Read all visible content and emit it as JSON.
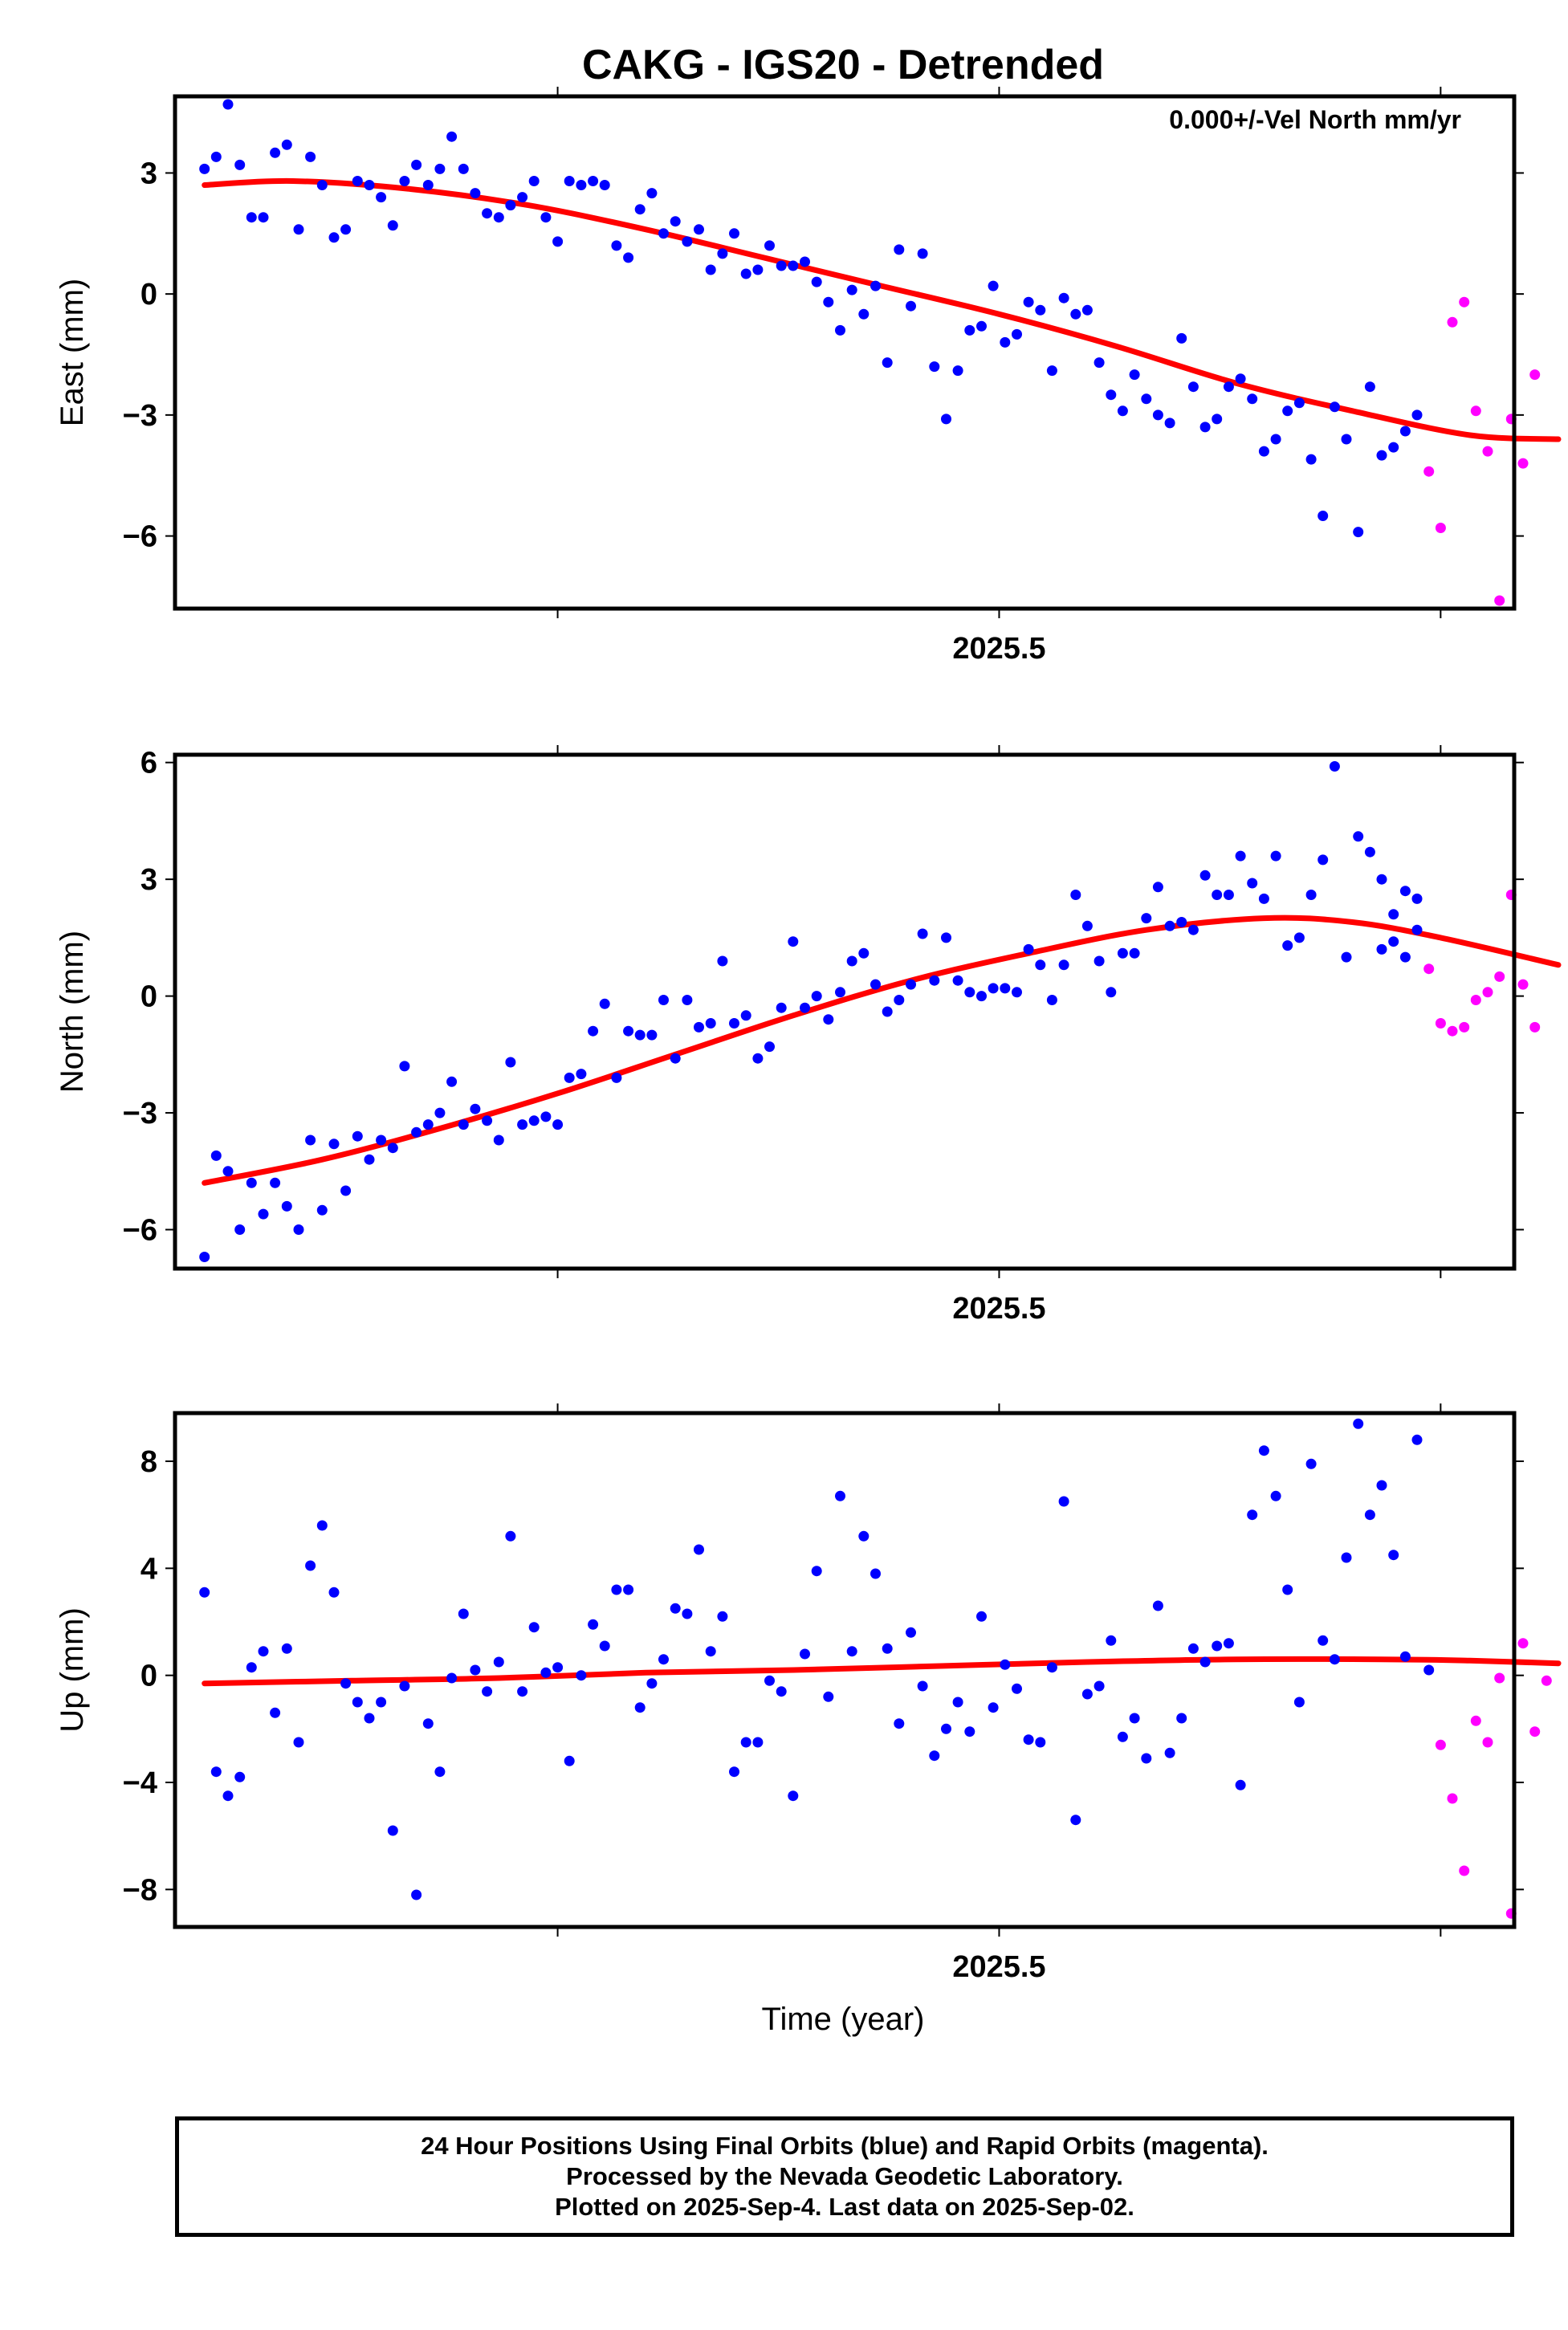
{
  "title": "CAKG - IGS20 - Detrended",
  "annotation": "0.000+/-Vel North mm/yr",
  "footer": {
    "line1": "24 Hour Positions Using Final Orbits (blue) and Rapid Orbits (magenta).",
    "line2": "Processed by the Nevada Geodetic Laboratory.",
    "line3": "Plotted on 2025-Sep-4. Last data on 2025-Sep-02."
  },
  "colors": {
    "final": "#0000ff",
    "rapid": "#ff00ff",
    "fit": "#ff0000",
    "frame": "#000000"
  },
  "chart_data": [
    {
      "type": "scatter",
      "ylabel": "East (mm)",
      "xlabel": "",
      "xlim": [
        2025.22,
        2025.675
      ],
      "ylim": [
        -7.8,
        4.9
      ],
      "x_ticks": [
        2025.35,
        2025.5,
        2025.65
      ],
      "x_tick_labels": [
        "",
        "2025.5",
        ""
      ],
      "y_ticks": [
        3,
        0,
        -3,
        -6
      ],
      "y_tick_labels": [
        "3",
        "0",
        "−3",
        "−6"
      ],
      "series": [
        {
          "role": "final",
          "x": [
            2025.23,
            2025.234,
            2025.238,
            2025.242,
            2025.246,
            2025.25,
            2025.254,
            2025.258,
            2025.262,
            2025.266,
            2025.27,
            2025.274,
            2025.278,
            2025.282,
            2025.286,
            2025.29,
            2025.294,
            2025.298,
            2025.302,
            2025.306,
            2025.31,
            2025.314,
            2025.318,
            2025.322,
            2025.326,
            2025.33,
            2025.334,
            2025.338,
            2025.342,
            2025.346,
            2025.35,
            2025.354,
            2025.358,
            2025.362,
            2025.366,
            2025.37,
            2025.374,
            2025.378,
            2025.382,
            2025.386,
            2025.39,
            2025.394,
            2025.398,
            2025.402,
            2025.406,
            2025.41,
            2025.414,
            2025.418,
            2025.422,
            2025.426,
            2025.43,
            2025.434,
            2025.438,
            2025.442,
            2025.446,
            2025.45,
            2025.454,
            2025.458,
            2025.462,
            2025.466,
            2025.47,
            2025.474,
            2025.478,
            2025.482,
            2025.486,
            2025.49,
            2025.494,
            2025.498,
            2025.502,
            2025.506,
            2025.51,
            2025.514,
            2025.518,
            2025.522,
            2025.526,
            2025.53,
            2025.534,
            2025.538,
            2025.542,
            2025.546,
            2025.55,
            2025.554,
            2025.558,
            2025.562,
            2025.566,
            2025.57,
            2025.574,
            2025.578,
            2025.582,
            2025.586,
            2025.59,
            2025.594,
            2025.598,
            2025.602,
            2025.606,
            2025.61,
            2025.614,
            2025.618,
            2025.622
          ],
          "y": [
            3.1,
            3.4,
            4.7,
            3.2,
            1.9,
            1.9,
            3.5,
            3.7,
            1.6,
            3.4,
            2.7,
            1.4,
            1.6,
            2.8,
            2.7,
            2.4,
            1.7,
            2.8,
            3.2,
            2.7,
            3.1,
            3.9,
            3.1,
            2.5,
            2.0,
            1.9,
            2.2,
            2.4,
            2.8,
            1.9,
            1.3,
            2.8,
            2.7,
            2.8,
            2.7,
            1.2,
            0.9,
            2.1,
            2.5,
            1.5,
            1.8,
            1.3,
            1.6,
            0.6,
            1.0,
            1.5,
            0.5,
            0.6,
            1.2,
            0.7,
            0.7,
            0.8,
            0.3,
            -0.2,
            -0.9,
            0.1,
            -0.5,
            0.2,
            -1.7,
            1.1,
            -0.3,
            1.0,
            -1.8,
            -3.1,
            -1.9,
            -0.9,
            -0.8,
            0.2,
            -1.2,
            -1.0,
            -0.2,
            -0.4,
            -1.9,
            -0.1,
            -0.5,
            -0.4,
            -1.7,
            -2.5,
            -2.9,
            -2.0,
            -2.6,
            -3.0,
            -3.2,
            -1.1,
            -2.3,
            -3.3,
            -3.1,
            -2.3,
            -2.1,
            -2.6,
            -3.9,
            -3.6,
            -2.9,
            -2.7,
            -4.1,
            -5.5,
            -2.8,
            -3.6,
            -5.9
          ]
        },
        {
          "role": "final",
          "x": [
            2025.626,
            2025.63,
            2025.634,
            2025.638,
            2025.642
          ],
          "y": [
            -2.3,
            -4.0,
            -3.8,
            -3.4,
            -3.0
          ]
        },
        {
          "role": "rapid",
          "x": [
            2025.646,
            2025.65,
            2025.654,
            2025.658,
            2025.662,
            2025.666,
            2025.67,
            2025.674,
            2025.678,
            2025.682
          ],
          "y": [
            -4.4,
            -5.8,
            -0.7,
            -0.2,
            -2.9,
            -3.9,
            -7.6,
            -3.1,
            -4.2,
            -2.0
          ]
        }
      ],
      "fit": {
        "x": [
          2025.23,
          2025.26,
          2025.3,
          2025.34,
          2025.38,
          2025.42,
          2025.46,
          2025.5,
          2025.54,
          2025.58,
          2025.62,
          2025.66,
          2025.69
        ],
        "y": [
          2.7,
          2.8,
          2.6,
          2.2,
          1.6,
          0.9,
          0.2,
          -0.5,
          -1.3,
          -2.2,
          -2.9,
          -3.5,
          -3.6
        ]
      }
    },
    {
      "type": "scatter",
      "ylabel": "North (mm)",
      "xlabel": "",
      "xlim": [
        2025.22,
        2025.675
      ],
      "ylim": [
        -7.0,
        6.2
      ],
      "x_ticks": [
        2025.35,
        2025.5,
        2025.65
      ],
      "x_tick_labels": [
        "",
        "2025.5",
        ""
      ],
      "y_ticks": [
        6,
        3,
        0,
        -3,
        -6
      ],
      "y_tick_labels": [
        "6",
        "3",
        "0",
        "−3",
        "−6"
      ],
      "series": [
        {
          "role": "final",
          "x": [
            2025.23,
            2025.234,
            2025.238,
            2025.242,
            2025.246,
            2025.25,
            2025.254,
            2025.258,
            2025.262,
            2025.266,
            2025.27,
            2025.274,
            2025.278,
            2025.282,
            2025.286,
            2025.29,
            2025.294,
            2025.298,
            2025.302,
            2025.306,
            2025.31,
            2025.314,
            2025.318,
            2025.322,
            2025.326,
            2025.33,
            2025.334,
            2025.338,
            2025.342,
            2025.346,
            2025.35,
            2025.354,
            2025.358,
            2025.362,
            2025.366,
            2025.37,
            2025.374,
            2025.378,
            2025.382,
            2025.386,
            2025.39,
            2025.394,
            2025.398,
            2025.402,
            2025.406,
            2025.41,
            2025.414,
            2025.418,
            2025.422,
            2025.426,
            2025.43,
            2025.434,
            2025.438,
            2025.442,
            2025.446,
            2025.45,
            2025.454,
            2025.458,
            2025.462,
            2025.466,
            2025.47,
            2025.474,
            2025.478,
            2025.482,
            2025.486,
            2025.49,
            2025.494,
            2025.498,
            2025.502,
            2025.506,
            2025.51,
            2025.514,
            2025.518,
            2025.522,
            2025.526,
            2025.53,
            2025.534,
            2025.538,
            2025.542,
            2025.546,
            2025.55,
            2025.554,
            2025.558,
            2025.562,
            2025.566,
            2025.57,
            2025.574,
            2025.578,
            2025.582,
            2025.586,
            2025.59,
            2025.594,
            2025.598,
            2025.602,
            2025.606,
            2025.61,
            2025.614,
            2025.618,
            2025.622,
            2025.626,
            2025.63,
            2025.634,
            2025.638,
            2025.642
          ],
          "y": [
            -6.7,
            -4.1,
            -4.5,
            -6.0,
            -4.8,
            -5.6,
            -4.8,
            -5.4,
            -6.0,
            -3.7,
            -5.5,
            -3.8,
            -5.0,
            -3.6,
            -4.2,
            -3.7,
            -3.9,
            -1.8,
            -3.5,
            -3.3,
            -3.0,
            -2.2,
            -3.3,
            -2.9,
            -3.2,
            -3.7,
            -1.7,
            -3.3,
            -3.2,
            -3.1,
            -3.3,
            -2.1,
            -2.0,
            -0.9,
            -0.2,
            -2.1,
            -0.9,
            -1.0,
            -1.0,
            -0.1,
            -1.6,
            -0.1,
            -0.8,
            -0.7,
            0.9,
            -0.7,
            -0.5,
            -1.6,
            -1.3,
            -0.3,
            1.4,
            -0.3,
            0.0,
            -0.6,
            0.1,
            0.9,
            1.1,
            0.3,
            -0.4,
            -0.1,
            0.3,
            1.6,
            0.4,
            1.5,
            0.4,
            0.1,
            0.0,
            0.2,
            0.2,
            0.1,
            1.2,
            0.8,
            -0.1,
            0.8,
            2.6,
            1.8,
            0.9,
            0.1,
            1.1,
            1.1,
            2.0,
            2.8,
            1.8,
            1.9,
            1.7,
            3.1,
            2.6,
            2.6,
            3.6,
            2.9,
            2.5,
            3.6,
            1.3,
            1.5,
            2.6,
            3.5,
            5.9,
            1.0,
            4.1,
            3.7,
            1.2,
            2.1,
            2.7,
            2.5
          ]
        },
        {
          "role": "final",
          "x": [
            2025.63,
            2025.634,
            2025.638,
            2025.642
          ],
          "y": [
            3.0,
            1.4,
            1.0,
            1.7
          ]
        },
        {
          "role": "rapid",
          "x": [
            2025.646,
            2025.65,
            2025.654,
            2025.658,
            2025.662,
            2025.666,
            2025.67,
            2025.674,
            2025.678,
            2025.682
          ],
          "y": [
            0.7,
            -0.7,
            -0.9,
            -0.8,
            -0.1,
            0.1,
            0.5,
            2.6,
            0.3,
            -0.8
          ]
        }
      ],
      "fit": {
        "x": [
          2025.23,
          2025.27,
          2025.31,
          2025.35,
          2025.39,
          2025.43,
          2025.47,
          2025.51,
          2025.55,
          2025.59,
          2025.62,
          2025.65,
          2025.69
        ],
        "y": [
          -4.8,
          -4.2,
          -3.4,
          -2.5,
          -1.5,
          -0.5,
          0.4,
          1.1,
          1.7,
          2.0,
          1.9,
          1.5,
          0.8
        ]
      }
    },
    {
      "type": "scatter",
      "ylabel": "Up (mm)",
      "xlabel": "Time (year)",
      "xlim": [
        2025.22,
        2025.675
      ],
      "ylim": [
        -9.4,
        9.8
      ],
      "x_ticks": [
        2025.35,
        2025.5,
        2025.65
      ],
      "x_tick_labels": [
        "",
        "2025.5",
        ""
      ],
      "y_ticks": [
        8,
        4,
        0,
        -4,
        -8
      ],
      "y_tick_labels": [
        "8",
        "4",
        "0",
        "−4",
        "−8"
      ],
      "series": [
        {
          "role": "final",
          "x": [
            2025.23,
            2025.234,
            2025.238,
            2025.242,
            2025.246,
            2025.25,
            2025.254,
            2025.258,
            2025.262,
            2025.266,
            2025.27,
            2025.274,
            2025.278,
            2025.282,
            2025.286,
            2025.29,
            2025.294,
            2025.298,
            2025.302,
            2025.306,
            2025.31,
            2025.314,
            2025.318,
            2025.322,
            2025.326,
            2025.33,
            2025.334,
            2025.338,
            2025.342,
            2025.346,
            2025.35,
            2025.354,
            2025.358,
            2025.362,
            2025.366,
            2025.37,
            2025.374,
            2025.378,
            2025.382,
            2025.386,
            2025.39,
            2025.394,
            2025.398,
            2025.402,
            2025.406,
            2025.41,
            2025.414,
            2025.418,
            2025.422,
            2025.426,
            2025.43,
            2025.434,
            2025.438,
            2025.442,
            2025.446,
            2025.45,
            2025.454,
            2025.458,
            2025.462,
            2025.466,
            2025.47,
            2025.474,
            2025.478,
            2025.482,
            2025.486,
            2025.49,
            2025.494,
            2025.498,
            2025.502,
            2025.506,
            2025.51,
            2025.514,
            2025.518,
            2025.522,
            2025.526,
            2025.53,
            2025.534,
            2025.538,
            2025.542,
            2025.546,
            2025.55,
            2025.554,
            2025.558,
            2025.562,
            2025.566,
            2025.57,
            2025.574,
            2025.578,
            2025.582,
            2025.586,
            2025.59,
            2025.594,
            2025.598,
            2025.602,
            2025.606,
            2025.61,
            2025.614,
            2025.618,
            2025.622,
            2025.626,
            2025.63,
            2025.634,
            2025.638,
            2025.642
          ],
          "y": [
            3.1,
            -3.6,
            -4.5,
            -3.8,
            0.3,
            0.9,
            -1.4,
            1.0,
            -2.5,
            4.1,
            5.6,
            3.1,
            -0.3,
            -1.0,
            -1.6,
            -1.0,
            -5.8,
            -0.4,
            -8.2,
            -1.8,
            -3.6,
            -0.1,
            2.3,
            0.2,
            -0.6,
            0.5,
            5.2,
            -0.6,
            1.8,
            0.1,
            0.3,
            -3.2,
            0.0,
            1.9,
            1.1,
            3.2,
            3.2,
            -1.2,
            -0.3,
            0.6,
            2.5,
            2.3,
            4.7,
            0.9,
            2.2,
            -3.6,
            -2.5,
            -2.5,
            -0.2,
            -0.6,
            -4.5,
            0.8,
            3.9,
            -0.8,
            6.7,
            0.9,
            5.2,
            3.8,
            1.0,
            -1.8,
            1.6,
            -0.4,
            -3.0,
            -2.0,
            -1.0,
            -2.1,
            2.2,
            -1.2,
            0.4,
            -0.5,
            -2.4,
            -2.5,
            0.3,
            6.5,
            -5.4,
            -0.7,
            -0.4,
            1.3,
            -2.3,
            -1.6,
            -3.1,
            2.6,
            -2.9,
            -1.6,
            1.0,
            0.5,
            1.1,
            1.2,
            -4.1,
            6.0,
            8.4,
            6.7,
            3.2,
            -1.0,
            7.9,
            1.3,
            0.6,
            4.4,
            9.4,
            6.0,
            7.1,
            4.5,
            0.7,
            8.8
          ]
        },
        {
          "role": "final",
          "x": [
            2025.646
          ],
          "y": [
            0.2
          ]
        },
        {
          "role": "rapid",
          "x": [
            2025.65,
            2025.654,
            2025.658,
            2025.662,
            2025.666,
            2025.67,
            2025.674,
            2025.678,
            2025.682,
            2025.686
          ],
          "y": [
            -2.6,
            -4.6,
            -7.3,
            -1.7,
            -2.5,
            -0.1,
            -8.9,
            1.2,
            -2.1,
            -0.2
          ]
        }
      ],
      "fit": {
        "x": [
          2025.23,
          2025.28,
          2025.33,
          2025.38,
          2025.43,
          2025.48,
          2025.53,
          2025.58,
          2025.63,
          2025.66,
          2025.69
        ],
        "y": [
          -0.3,
          -0.2,
          -0.1,
          0.1,
          0.2,
          0.35,
          0.5,
          0.6,
          0.6,
          0.55,
          0.45
        ]
      }
    }
  ]
}
